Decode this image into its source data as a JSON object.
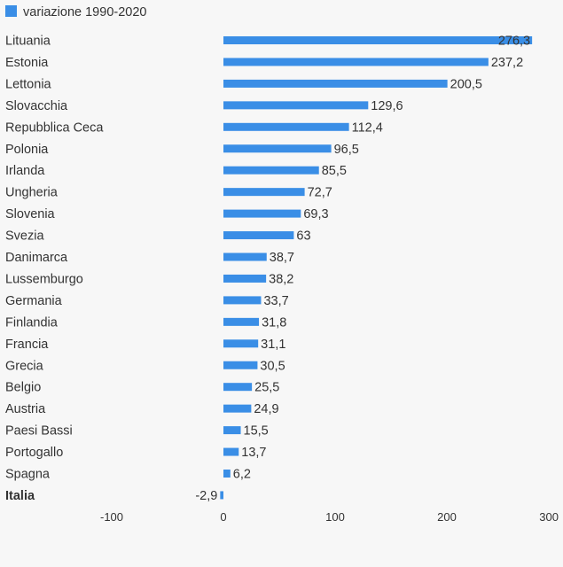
{
  "chart_data": {
    "type": "bar",
    "orientation": "horizontal",
    "legend": {
      "label": "variazione 1990-2020",
      "position": "top-left"
    },
    "colors": {
      "bar": "#3a8ee6",
      "background": "#f7f7f7",
      "text": "#333333"
    },
    "categories": [
      "Lituania",
      "Estonia",
      "Lettonia",
      "Slovacchia",
      "Repubblica Ceca",
      "Polonia",
      "Irlanda",
      "Ungheria",
      "Slovenia",
      "Svezia",
      "Danimarca",
      "Lussemburgo",
      "Germania",
      "Finlandia",
      "Francia",
      "Grecia",
      "Belgio",
      "Austria",
      "Paesi Bassi",
      "Portogallo",
      "Spagna",
      "Italia"
    ],
    "values": [
      276.3,
      237.2,
      200.5,
      129.6,
      112.4,
      96.5,
      85.5,
      72.7,
      69.3,
      63,
      38.7,
      38.2,
      33.7,
      31.8,
      31.1,
      30.5,
      25.5,
      24.9,
      15.5,
      13.7,
      6.2,
      -2.9
    ],
    "value_labels": [
      "276,3",
      "237,2",
      "200,5",
      "129,6",
      "112,4",
      "96,5",
      "85,5",
      "72,7",
      "69,3",
      "63",
      "38,7",
      "38,2",
      "33,7",
      "31,8",
      "31,1",
      "30,5",
      "25,5",
      "24,9",
      "15,5",
      "13,7",
      "6,2",
      "-2,9"
    ],
    "highlight_category": "Italia",
    "xlim": [
      -100,
      300
    ],
    "xticks": [
      -100,
      0,
      100,
      200,
      300
    ],
    "xtick_labels": [
      "-100",
      "0",
      "100",
      "200",
      "300"
    ],
    "grid": false
  }
}
